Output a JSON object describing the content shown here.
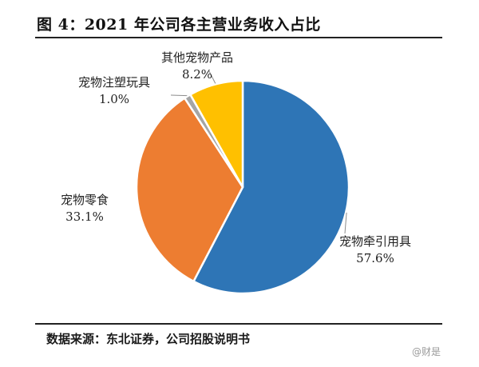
{
  "figure": {
    "title": "图 4：2021 年公司各主营业务收入占比",
    "source": "数据来源：东北证券，公司招股说明书",
    "watermark": "@财是"
  },
  "chart_data": {
    "type": "pie",
    "title": "图 4：2021 年公司各主营业务收入占比",
    "slices": [
      {
        "label": "宠物牵引用具",
        "value": 57.6,
        "value_label": "57.6%",
        "color": "#2E75B6"
      },
      {
        "label": "宠物零食",
        "value": 33.1,
        "value_label": "33.1%",
        "color": "#ED7D31"
      },
      {
        "label": "宠物注塑玩具",
        "value": 1.0,
        "value_label": "1.0%",
        "color": "#A5A5A5"
      },
      {
        "label": "其他宠物产品",
        "value": 8.2,
        "value_label": "8.2%",
        "color": "#FFC000"
      }
    ],
    "start": "12 o'clock",
    "direction": "clockwise",
    "legend": "none"
  }
}
